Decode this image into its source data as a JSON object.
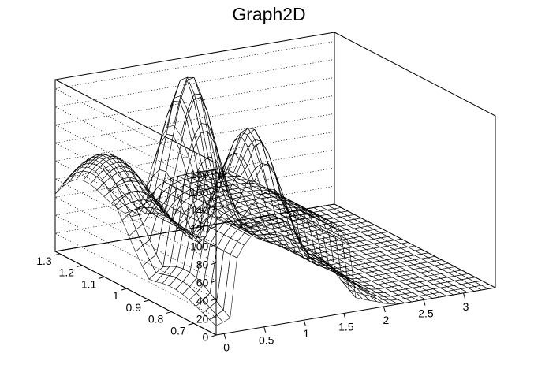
{
  "chart_data": {
    "type": "surface",
    "title": "Graph2D",
    "xlabel": "",
    "ylabel": "",
    "zlabel": "",
    "xlim": [
      -0.1,
      3.4
    ],
    "ylim": [
      0.6,
      1.32
    ],
    "zlim": [
      0,
      190
    ],
    "x_ticks": [
      "0",
      "0.5",
      "1",
      "1.5",
      "2",
      "2.5",
      "3"
    ],
    "y_ticks": [
      "0.7",
      "0.8",
      "0.9",
      "1",
      "1.1",
      "1.2",
      "1.3"
    ],
    "z_ticks": [
      "0",
      "20",
      "40",
      "60",
      "80",
      "100",
      "120",
      "140",
      "160",
      "180"
    ],
    "grid": true,
    "palette": [
      "#352a87",
      "#0f5cdd",
      "#1481d6",
      "#06a4ca",
      "#2eb7a4",
      "#87bf77",
      "#d1bb59",
      "#fec832",
      "#f9fb0e"
    ],
    "surface_features": [
      {
        "name": "left-ridge",
        "x_center": 0.0,
        "y_center": 1.16,
        "peak_z": 120
      },
      {
        "name": "front-plateau",
        "x_center": 0.85,
        "y_center": 0.8,
        "peak_z": 112
      },
      {
        "name": "back-peak",
        "x_center": 1.35,
        "y_center": 1.24,
        "peak_z": 185
      },
      {
        "name": "mid-peak",
        "x_center": 1.45,
        "y_center": 1.0,
        "peak_z": 155
      }
    ]
  }
}
